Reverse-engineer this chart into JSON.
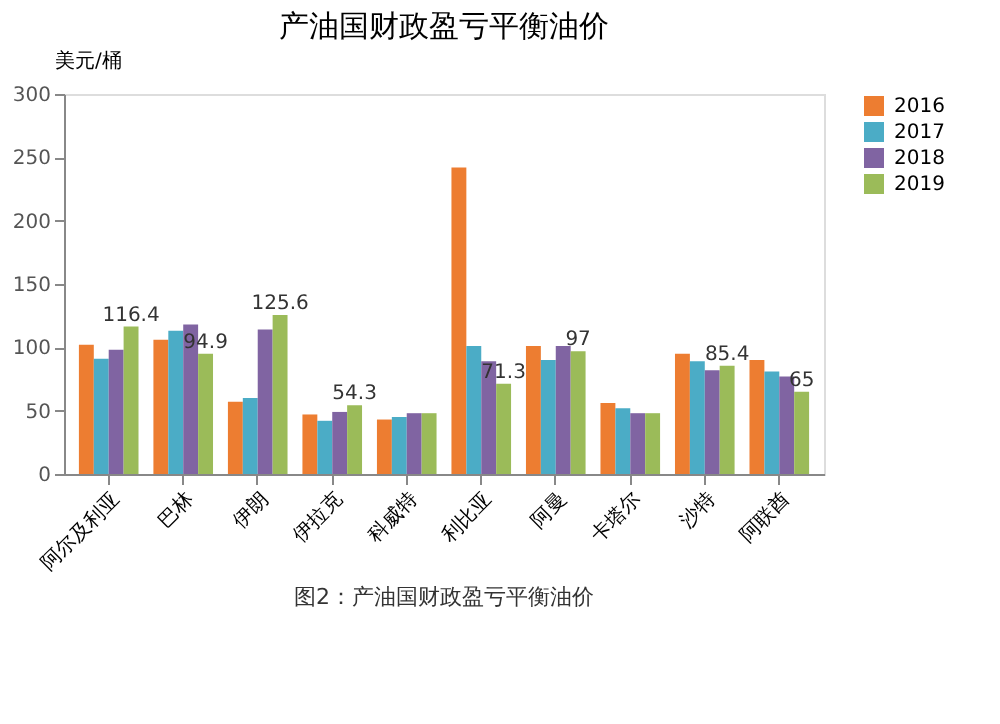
{
  "chart_data": {
    "type": "bar",
    "title": "产油国财政盈亏平衡油价",
    "ylabel": "美元/桶",
    "categories": [
      "阿尔及利亚",
      "巴林",
      "伊朗",
      "伊拉克",
      "科威特",
      "利比亚",
      "阿曼",
      "卡塔尔",
      "沙特",
      "阿联酋"
    ],
    "series": [
      {
        "name": "2016",
        "color": "#ed7d31",
        "values": [
          102,
          106,
          57,
          47,
          43,
          242,
          101,
          56,
          95,
          90
        ]
      },
      {
        "name": "2017",
        "color": "#4bacc6",
        "values": [
          91,
          113,
          60,
          42,
          45,
          101,
          90,
          52,
          89,
          81
        ]
      },
      {
        "name": "2018",
        "color": "#8064a2",
        "values": [
          98,
          118,
          114,
          49,
          48,
          89,
          101,
          48,
          82,
          77
        ]
      },
      {
        "name": "2019",
        "color": "#9bbb59",
        "values": [
          116.4,
          94.9,
          125.6,
          54.3,
          48,
          71.3,
          97,
          48,
          85.4,
          65
        ],
        "value_labels": [
          "116.4",
          "94.9",
          "125.6",
          "54.3",
          null,
          "71.3",
          "97",
          null,
          "85.4",
          "65"
        ]
      }
    ],
    "ylim": [
      0,
      300
    ],
    "yticks": [
      0,
      50,
      100,
      150,
      200,
      250,
      300
    ],
    "grid": false,
    "legend": "top right",
    "annotations": [
      "图2：产油国财政盈亏平衡油价"
    ]
  }
}
